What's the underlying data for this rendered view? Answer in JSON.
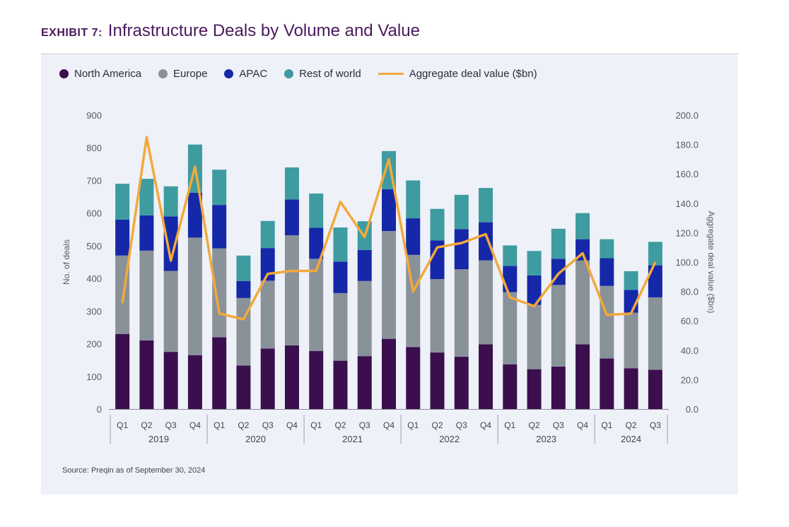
{
  "header": {
    "exhibit_label": "EXHIBIT 7:",
    "title": "Infrastructure Deals by Volume and Value"
  },
  "source": "Source: Preqin as of September 30, 2024",
  "colors": {
    "north_america": "#3b0f4d",
    "europe": "#8a9299",
    "apac": "#1528a8",
    "rest_of_world": "#3e9ba0",
    "aggregate_line": "#f2a93b"
  },
  "chart_data": {
    "type": "bar",
    "stacked": true,
    "x_quarters": [
      "Q1",
      "Q2",
      "Q3",
      "Q4",
      "Q1",
      "Q2",
      "Q3",
      "Q4",
      "Q1",
      "Q2",
      "Q3",
      "Q4",
      "Q1",
      "Q2",
      "Q3",
      "Q4",
      "Q1",
      "Q2",
      "Q3",
      "Q4",
      "Q1",
      "Q2",
      "Q3"
    ],
    "x_years": [
      "2019",
      "2020",
      "2021",
      "2022",
      "2023",
      "2024"
    ],
    "ylabel": "No. of deals",
    "ylabel_right": "Aggregate deal value ($bn)",
    "ylim": [
      0,
      900
    ],
    "ylim_right": [
      0,
      200
    ],
    "yticks": [
      "0",
      "100",
      "200",
      "300",
      "400",
      "500",
      "600",
      "700",
      "800",
      "900"
    ],
    "yticks_right": [
      "0.0",
      "20.0",
      "40.0",
      "60.0",
      "80.0",
      "100.0",
      "120.0",
      "140.0",
      "160.0",
      "180.0",
      "200.0"
    ],
    "legend": [
      "North America",
      "Europe",
      "APAC",
      "Rest of world",
      "Aggregate deal value ($bn)"
    ],
    "legend_position": "top-left",
    "series": [
      {
        "name": "North America",
        "values": [
          230,
          210,
          175,
          165,
          220,
          133,
          185,
          195,
          178,
          148,
          162,
          215,
          190,
          173,
          160,
          198,
          137,
          122,
          130,
          198,
          155,
          125,
          120
        ]
      },
      {
        "name": "Europe",
        "values": [
          240,
          275,
          248,
          360,
          272,
          207,
          208,
          337,
          282,
          207,
          230,
          330,
          282,
          225,
          268,
          257,
          221,
          197,
          250,
          257,
          222,
          170,
          222
        ]
      },
      {
        "name": "APAC",
        "values": [
          110,
          108,
          167,
          137,
          133,
          52,
          100,
          110,
          95,
          96,
          95,
          128,
          112,
          118,
          123,
          117,
          80,
          90,
          80,
          65,
          85,
          70,
          98
        ]
      },
      {
        "name": "Rest of world",
        "values": [
          110,
          112,
          92,
          148,
          108,
          78,
          83,
          98,
          105,
          105,
          88,
          117,
          116,
          97,
          105,
          105,
          63,
          75,
          92,
          80,
          58,
          57,
          72
        ]
      },
      {
        "name": "Aggregate deal value ($bn)",
        "type": "line",
        "axis": "right",
        "values": [
          72,
          185,
          101,
          165,
          65,
          61,
          92,
          94,
          94,
          141,
          117,
          170,
          80,
          110,
          113,
          119,
          76,
          70,
          92,
          106,
          64,
          65,
          100
        ]
      }
    ]
  }
}
